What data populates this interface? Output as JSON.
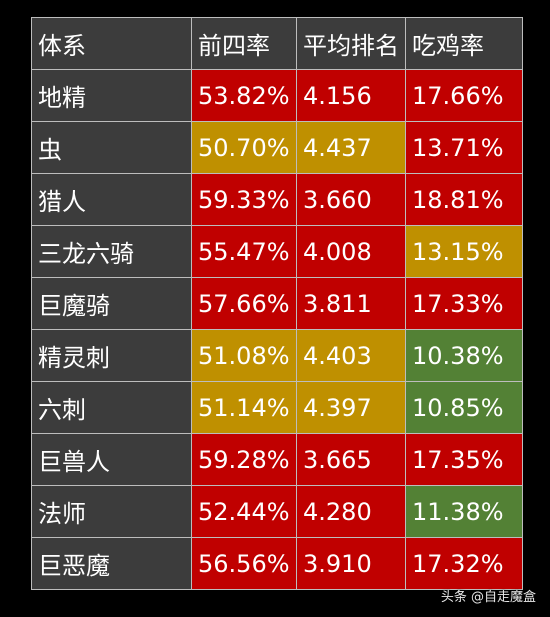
{
  "colors": {
    "red": "#c00000",
    "gold": "#bf9000",
    "green": "#538135",
    "name_bg": "#3c3c3c"
  },
  "table": {
    "headers": [
      "体系",
      "前四率",
      "平均排名",
      "吃鸡率"
    ],
    "rows": [
      {
        "name": "地精",
        "top4": "53.82%",
        "avg": "4.156",
        "win": "17.66%",
        "c_top4": "red",
        "c_avg": "red",
        "c_win": "red"
      },
      {
        "name": "虫",
        "top4": "50.70%",
        "avg": "4.437",
        "win": "13.71%",
        "c_top4": "gold",
        "c_avg": "gold",
        "c_win": "red"
      },
      {
        "name": "猎人",
        "top4": "59.33%",
        "avg": "3.660",
        "win": "18.81%",
        "c_top4": "red",
        "c_avg": "red",
        "c_win": "red"
      },
      {
        "name": "三龙六骑",
        "top4": "55.47%",
        "avg": "4.008",
        "win": "13.15%",
        "c_top4": "red",
        "c_avg": "red",
        "c_win": "gold"
      },
      {
        "name": "巨魔骑",
        "top4": "57.66%",
        "avg": "3.811",
        "win": "17.33%",
        "c_top4": "red",
        "c_avg": "red",
        "c_win": "red"
      },
      {
        "name": "精灵刺",
        "top4": "51.08%",
        "avg": "4.403",
        "win": "10.38%",
        "c_top4": "gold",
        "c_avg": "gold",
        "c_win": "green"
      },
      {
        "name": "六刺",
        "top4": "51.14%",
        "avg": "4.397",
        "win": "10.85%",
        "c_top4": "gold",
        "c_avg": "gold",
        "c_win": "green"
      },
      {
        "name": "巨兽人",
        "top4": "59.28%",
        "avg": "3.665",
        "win": "17.35%",
        "c_top4": "red",
        "c_avg": "red",
        "c_win": "red"
      },
      {
        "name": "法师",
        "top4": "52.44%",
        "avg": "4.280",
        "win": "11.38%",
        "c_top4": "red",
        "c_avg": "red",
        "c_win": "green"
      },
      {
        "name": "巨恶魔",
        "top4": "56.56%",
        "avg": "3.910",
        "win": "17.32%",
        "c_top4": "red",
        "c_avg": "red",
        "c_win": "red"
      }
    ]
  },
  "watermark": "头条 @自走魔盒"
}
